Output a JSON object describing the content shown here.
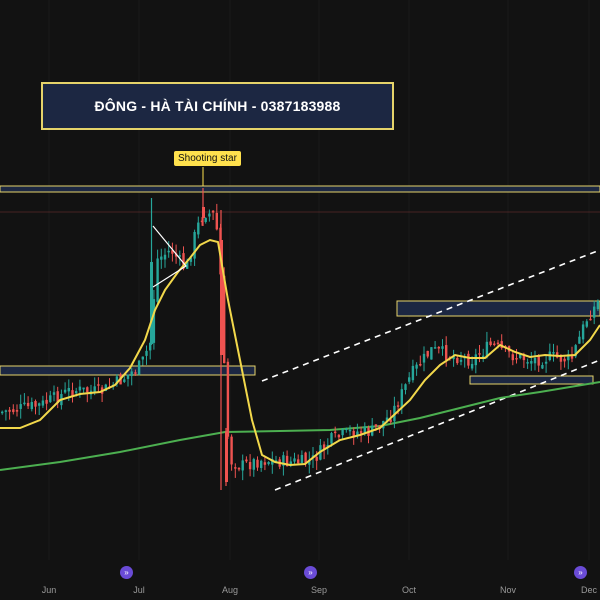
{
  "banner": {
    "text": "ĐÔNG - HÀ TÀI CHÍNH - 0387183988"
  },
  "callout": {
    "text": "Shooting star"
  },
  "nav_icon": "double-chevron-right-icon",
  "colors": {
    "background": "#121212",
    "up_candle": "#26a69a",
    "down_candle": "#ef5350",
    "fast_ma": "#f2d84b",
    "slow_ma": "#4caf50",
    "zone_border": "#e5d36a",
    "zone_fill": "#1c2742",
    "channel": "#ffffff"
  },
  "chart_data": {
    "type": "candlestick",
    "x_ticks": [
      "Jun",
      "Jul",
      "Aug",
      "Sep",
      "Oct",
      "Nov",
      "Dec"
    ],
    "series": [
      {
        "type": "candles"
      },
      {
        "type": "line"
      },
      {
        "type": "line"
      }
    ],
    "annotations": {
      "zones": 4,
      "channel": "dashed ascending",
      "triangle": "symmetrical"
    },
    "grid": false
  }
}
